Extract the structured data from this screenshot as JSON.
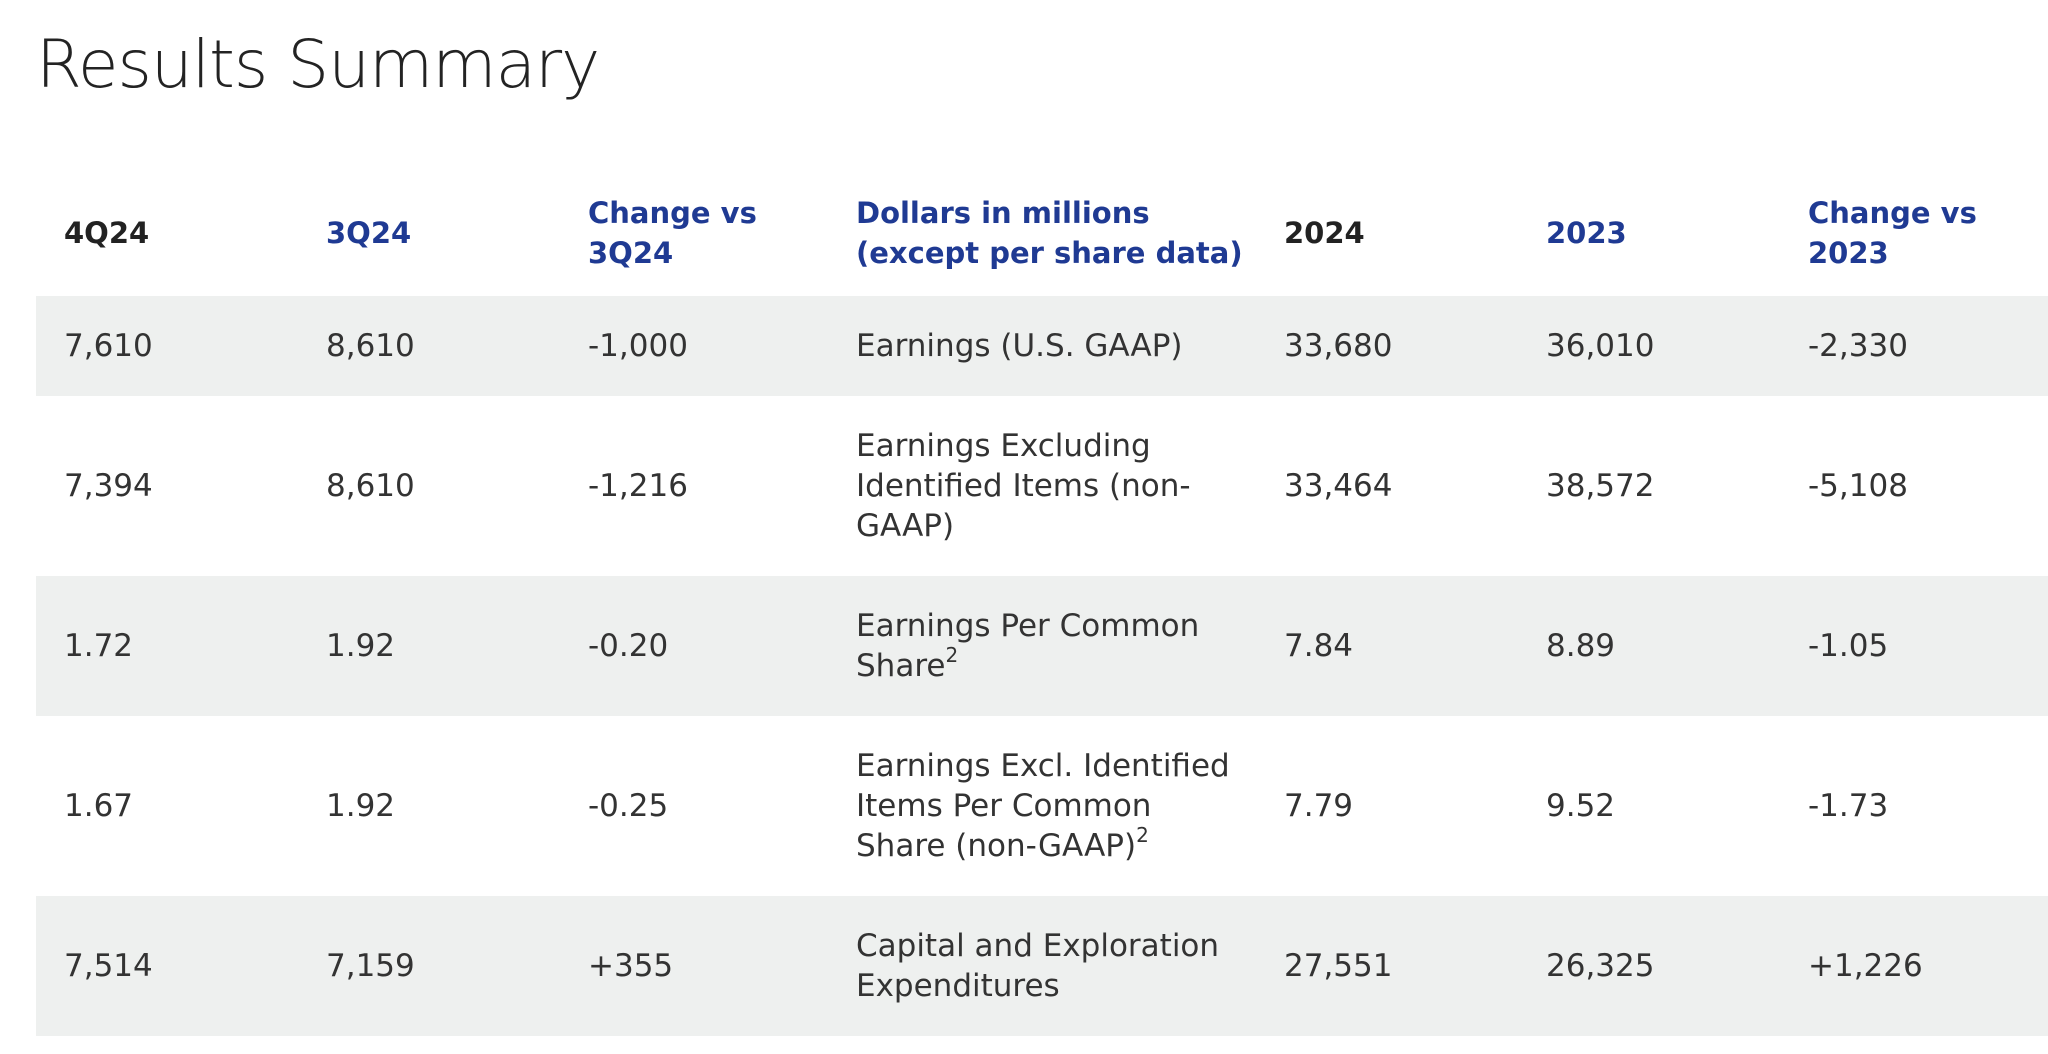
{
  "page": {
    "title": "Results Summary"
  },
  "table": {
    "headers": [
      "4Q24",
      "3Q24",
      "Change vs 3Q24",
      "Dollars in millions (except per share data)",
      "2024",
      "2023",
      "Change vs 2023"
    ],
    "header_colors": [
      "#222222",
      "#1f3a93",
      "#1f3a93",
      "#1f3a93",
      "#222222",
      "#1f3a93",
      "#1f3a93"
    ],
    "row_shading_color": "#eef0ef",
    "rows": [
      {
        "q4_24": "7,610",
        "q3_24": "8,610",
        "change_q": "-1,000",
        "label": "Earnings (U.S. GAAP)",
        "footnote": "",
        "y2024": "33,680",
        "y2023": "36,010",
        "change_y": "-2,330"
      },
      {
        "q4_24": "7,394",
        "q3_24": "8,610",
        "change_q": "-1,216",
        "label": "Earnings Excluding Identified Items (non-GAAP)",
        "footnote": "",
        "y2024": "33,464",
        "y2023": "38,572",
        "change_y": "-5,108"
      },
      {
        "q4_24": "1.72",
        "q3_24": "1.92",
        "change_q": "-0.20",
        "label": "Earnings Per Common Share",
        "footnote": "2",
        "y2024": "7.84",
        "y2023": "8.89",
        "change_y": "-1.05"
      },
      {
        "q4_24": "1.67",
        "q3_24": "1.92",
        "change_q": "-0.25",
        "label": "Earnings Excl. Identified Items Per Common Share (non-GAAP)",
        "footnote": "2",
        "y2024": "7.79",
        "y2023": "9.52",
        "change_y": "-1.73"
      },
      {
        "q4_24": "7,514",
        "q3_24": "7,159",
        "change_q": "+355",
        "label": "Capital and Exploration Expenditures",
        "footnote": "",
        "y2024": "27,551",
        "y2023": "26,325",
        "change_y": "+1,226"
      }
    ]
  }
}
